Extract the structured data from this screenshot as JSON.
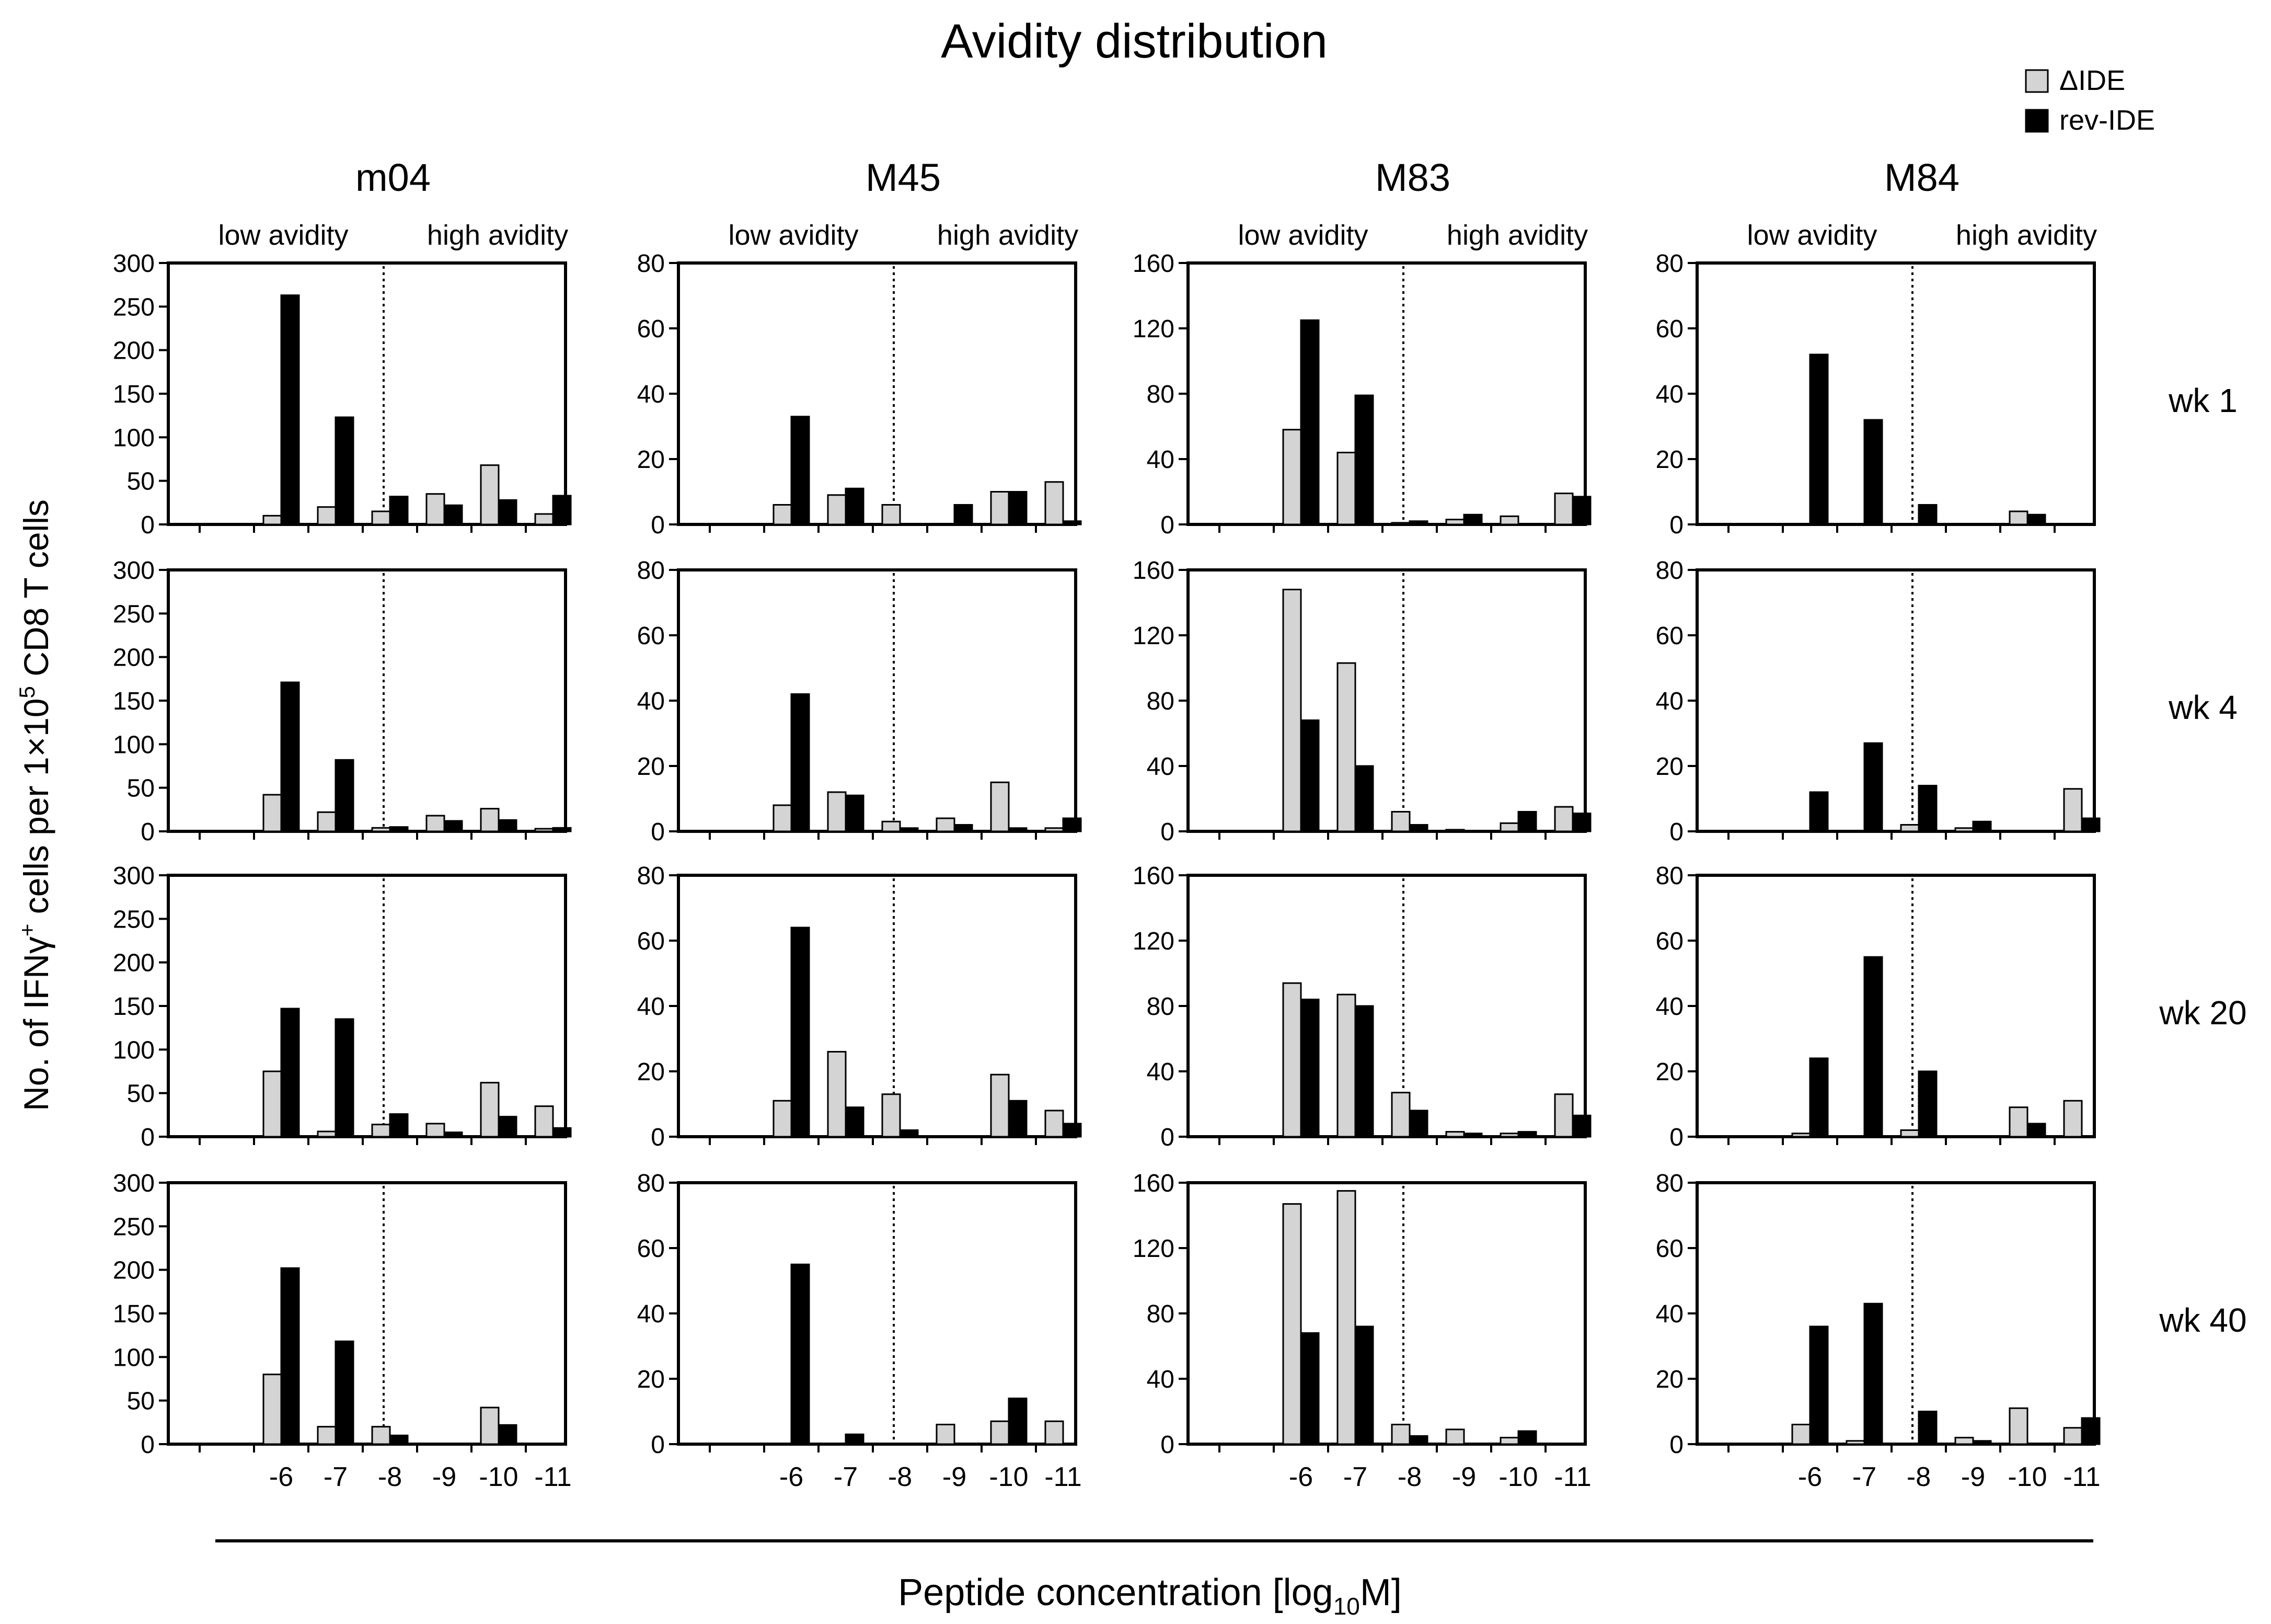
{
  "title": "Avidity distribution",
  "legend": {
    "position": "top-right",
    "items": [
      {
        "name": "ΔIDE",
        "color": "#d4d4d4"
      },
      {
        "name": "rev-IDE",
        "color": "#000000"
      }
    ]
  },
  "ylabel_parts": [
    "No. of IFNγ",
    "+",
    " cells per 1×10",
    "5",
    " CD8 T cells"
  ],
  "xlabel_parts": [
    "Peptide concentration [log",
    "10",
    "M]"
  ],
  "low_label": "low avidity",
  "high_label": "high avidity",
  "columns": [
    "m04",
    "M45",
    "M83",
    "M84"
  ],
  "rows": [
    "wk 1",
    "wk 4",
    "wk 20",
    "wk 40"
  ],
  "x_ticks": [
    "-6",
    "-7",
    "-8",
    "-9",
    "-10",
    "-11"
  ],
  "y_axes": {
    "m04": {
      "max": 300,
      "ticks": [
        "0",
        "50",
        "100",
        "150",
        "200",
        "250",
        "300"
      ]
    },
    "M45": {
      "max": 80,
      "ticks": [
        "0",
        "20",
        "40",
        "60",
        "80"
      ]
    },
    "M83": {
      "max": 160,
      "ticks": [
        "0",
        "40",
        "80",
        "120",
        "160"
      ]
    },
    "M84": {
      "max": 80,
      "ticks": [
        "0",
        "20",
        "40",
        "60",
        "80"
      ]
    }
  },
  "chart_data": {
    "type": "bar",
    "title": "Avidity distribution",
    "xlabel": "Peptide concentration [log10M]",
    "ylabel": "No. of IFNγ+ cells per 1×10^5 CD8 T cells",
    "categories": [
      "-6",
      "-7",
      "-8",
      "-9",
      "-10",
      "-11"
    ],
    "series_names": [
      "ΔIDE",
      "rev-IDE"
    ],
    "panels": [
      {
        "column": "m04",
        "row": "wk 1",
        "ylim": [
          0,
          300
        ],
        "series": [
          {
            "name": "ΔIDE",
            "values": [
              10,
              20,
              15,
              35,
              68,
              12
            ]
          },
          {
            "name": "rev-IDE",
            "values": [
              263,
              123,
              32,
              22,
              28,
              33
            ]
          }
        ]
      },
      {
        "column": "M45",
        "row": "wk 1",
        "ylim": [
          0,
          80
        ],
        "series": [
          {
            "name": "ΔIDE",
            "values": [
              6,
              9,
              6,
              0,
              10,
              13
            ]
          },
          {
            "name": "rev-IDE",
            "values": [
              33,
              11,
              0,
              6,
              10,
              1
            ]
          }
        ]
      },
      {
        "column": "M83",
        "row": "wk 1",
        "ylim": [
          0,
          160
        ],
        "series": [
          {
            "name": "ΔIDE",
            "values": [
              58,
              44,
              1,
              3,
              5,
              19
            ]
          },
          {
            "name": "rev-IDE",
            "values": [
              125,
              79,
              2,
              6,
              0,
              17
            ]
          }
        ]
      },
      {
        "column": "M84",
        "row": "wk 1",
        "ylim": [
          0,
          80
        ],
        "series": [
          {
            "name": "ΔIDE",
            "values": [
              0,
              0,
              0,
              0,
              4,
              0
            ]
          },
          {
            "name": "rev-IDE",
            "values": [
              52,
              32,
              6,
              0,
              3,
              0
            ]
          }
        ]
      },
      {
        "column": "m04",
        "row": "wk 4",
        "ylim": [
          0,
          300
        ],
        "series": [
          {
            "name": "ΔIDE",
            "values": [
              42,
              22,
              4,
              18,
              26,
              3
            ]
          },
          {
            "name": "rev-IDE",
            "values": [
              171,
              82,
              5,
              12,
              13,
              4
            ]
          }
        ]
      },
      {
        "column": "M45",
        "row": "wk 4",
        "ylim": [
          0,
          80
        ],
        "series": [
          {
            "name": "ΔIDE",
            "values": [
              8,
              12,
              3,
              4,
              15,
              1
            ]
          },
          {
            "name": "rev-IDE",
            "values": [
              42,
              11,
              1,
              2,
              1,
              4
            ]
          }
        ]
      },
      {
        "column": "M83",
        "row": "wk 4",
        "ylim": [
          0,
          160
        ],
        "series": [
          {
            "name": "ΔIDE",
            "values": [
              148,
              103,
              12,
              1,
              5,
              15
            ]
          },
          {
            "name": "rev-IDE",
            "values": [
              68,
              40,
              4,
              0,
              12,
              11
            ]
          }
        ]
      },
      {
        "column": "M84",
        "row": "wk 4",
        "ylim": [
          0,
          80
        ],
        "series": [
          {
            "name": "ΔIDE",
            "values": [
              0,
              0,
              2,
              1,
              0,
              13
            ]
          },
          {
            "name": "rev-IDE",
            "values": [
              12,
              27,
              14,
              3,
              0,
              4
            ]
          }
        ]
      },
      {
        "column": "m04",
        "row": "wk 20",
        "ylim": [
          0,
          300
        ],
        "series": [
          {
            "name": "ΔIDE",
            "values": [
              75,
              6,
              14,
              15,
              62,
              35
            ]
          },
          {
            "name": "rev-IDE",
            "values": [
              147,
              135,
              26,
              5,
              23,
              10
            ]
          }
        ]
      },
      {
        "column": "M45",
        "row": "wk 20",
        "ylim": [
          0,
          80
        ],
        "series": [
          {
            "name": "ΔIDE",
            "values": [
              11,
              26,
              13,
              0,
              19,
              8
            ]
          },
          {
            "name": "rev-IDE",
            "values": [
              64,
              9,
              2,
              0,
              11,
              4
            ]
          }
        ]
      },
      {
        "column": "M83",
        "row": "wk 20",
        "ylim": [
          0,
          160
        ],
        "series": [
          {
            "name": "ΔIDE",
            "values": [
              94,
              87,
              27,
              3,
              2,
              26
            ]
          },
          {
            "name": "rev-IDE",
            "values": [
              84,
              80,
              16,
              2,
              3,
              13
            ]
          }
        ]
      },
      {
        "column": "M84",
        "row": "wk 20",
        "ylim": [
          0,
          80
        ],
        "series": [
          {
            "name": "ΔIDE",
            "values": [
              1,
              0,
              2,
              0,
              9,
              11
            ]
          },
          {
            "name": "rev-IDE",
            "values": [
              24,
              55,
              20,
              0,
              4,
              0
            ]
          }
        ]
      },
      {
        "column": "m04",
        "row": "wk 40",
        "ylim": [
          0,
          300
        ],
        "series": [
          {
            "name": "ΔIDE",
            "values": [
              80,
              20,
              20,
              0,
              42,
              0
            ]
          },
          {
            "name": "rev-IDE",
            "values": [
              202,
              118,
              10,
              0,
              22,
              0
            ]
          }
        ]
      },
      {
        "column": "M45",
        "row": "wk 40",
        "ylim": [
          0,
          80
        ],
        "series": [
          {
            "name": "ΔIDE",
            "values": [
              0,
              0,
              0,
              6,
              7,
              7
            ]
          },
          {
            "name": "rev-IDE",
            "values": [
              55,
              3,
              0,
              0,
              14,
              0
            ]
          }
        ]
      },
      {
        "column": "M83",
        "row": "wk 40",
        "ylim": [
          0,
          160
        ],
        "series": [
          {
            "name": "ΔIDE",
            "values": [
              147,
              155,
              12,
              9,
              4,
              0
            ]
          },
          {
            "name": "rev-IDE",
            "values": [
              68,
              72,
              5,
              0,
              8,
              0
            ]
          }
        ]
      },
      {
        "column": "M84",
        "row": "wk 40",
        "ylim": [
          0,
          80
        ],
        "series": [
          {
            "name": "ΔIDE",
            "values": [
              6,
              1,
              0,
              2,
              11,
              5
            ]
          },
          {
            "name": "rev-IDE",
            "values": [
              36,
              43,
              10,
              1,
              0,
              8
            ]
          }
        ]
      }
    ]
  }
}
